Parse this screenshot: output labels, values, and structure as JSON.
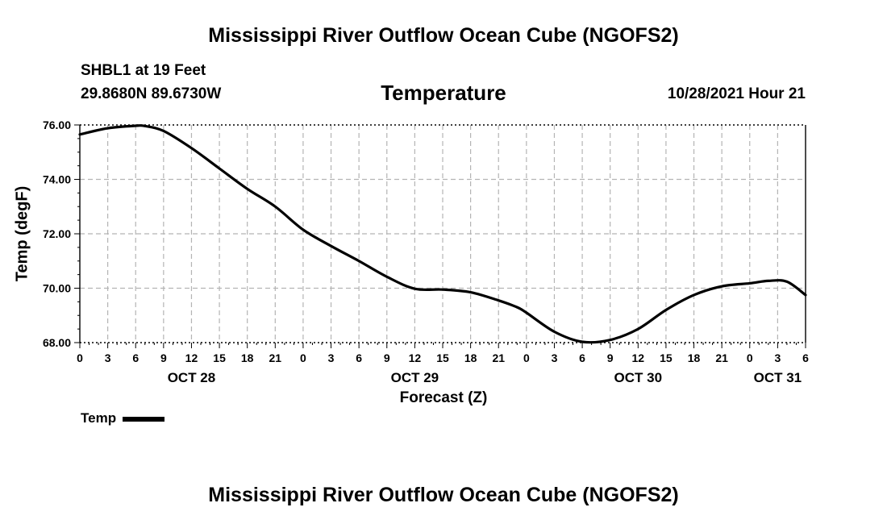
{
  "header": {
    "title": "Mississippi River Outflow Ocean Cube (NGOFS2)",
    "station": "SHBL1 at 19 Feet",
    "coords": "29.8680N  89.6730W",
    "subtitle": "Temperature",
    "datetime": "10/28/2021 Hour 21"
  },
  "footer": {
    "title": "Mississippi River Outflow Ocean Cube (NGOFS2)"
  },
  "legend": {
    "label": "Temp"
  },
  "chart_data": {
    "type": "line",
    "title": "Temperature",
    "xlabel": "Forecast (Z)",
    "ylabel": "Temp (degF)",
    "xlim": [
      0,
      78
    ],
    "ylim": [
      68.0,
      76.0
    ],
    "grid": true,
    "x_ticks": [
      0,
      3,
      6,
      9,
      12,
      15,
      18,
      21,
      24,
      27,
      30,
      33,
      36,
      39,
      42,
      45,
      48,
      51,
      54,
      57,
      60,
      63,
      66,
      69,
      72,
      75,
      78
    ],
    "x_tick_labels": [
      "0",
      "3",
      "6",
      "9",
      "12",
      "15",
      "18",
      "21",
      "0",
      "3",
      "6",
      "9",
      "12",
      "15",
      "18",
      "21",
      "0",
      "3",
      "6",
      "9",
      "12",
      "15",
      "18",
      "21",
      "0",
      "3",
      "6"
    ],
    "y_ticks": [
      68.0,
      70.0,
      72.0,
      74.0,
      76.0
    ],
    "y_tick_labels": [
      "68.00",
      "70.00",
      "72.00",
      "74.00",
      "76.00"
    ],
    "date_labels": [
      {
        "x": 12,
        "label": "OCT 28"
      },
      {
        "x": 36,
        "label": "OCT 29"
      },
      {
        "x": 60,
        "label": "OCT 30"
      },
      {
        "x": 75,
        "label": "OCT 31"
      }
    ],
    "series": [
      {
        "name": "Temp",
        "color": "#000000",
        "x": [
          0,
          3,
          6,
          7,
          9,
          12,
          15,
          18,
          21,
          24,
          27,
          30,
          33,
          36,
          39,
          42,
          45,
          47,
          48,
          51,
          54,
          57,
          60,
          63,
          66,
          69,
          72,
          74,
          76,
          78
        ],
        "y": [
          75.65,
          75.88,
          75.97,
          75.96,
          75.78,
          75.15,
          74.4,
          73.65,
          73.0,
          72.15,
          71.55,
          71.0,
          70.42,
          69.98,
          69.95,
          69.85,
          69.55,
          69.3,
          69.1,
          68.4,
          68.03,
          68.1,
          68.5,
          69.2,
          69.75,
          70.07,
          70.18,
          70.27,
          70.24,
          69.75
        ]
      }
    ]
  }
}
